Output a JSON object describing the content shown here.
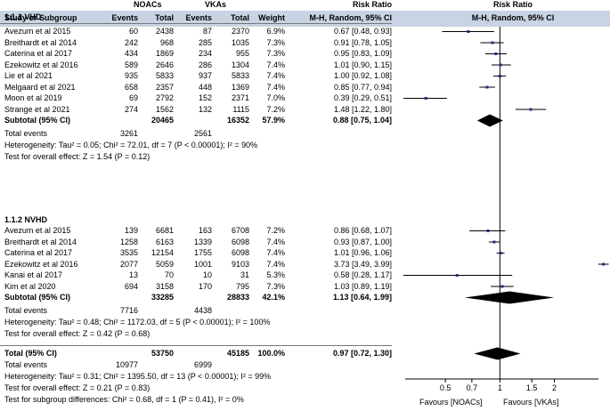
{
  "header": {
    "group_nonac": "NOACs",
    "group_vka": "VKAs",
    "risk_ratio": "Risk Ratio",
    "col_study": "Study or Subgroup",
    "col_events": "Events",
    "col_total": "Total",
    "col_weight": "Weight",
    "col_method": "M-H, Random, 95% CI"
  },
  "sections": [
    {
      "title": "1.1.1 VHD",
      "studies": [
        {
          "name": "Avezum et al 2015",
          "e1": "60",
          "n1": "2438",
          "e2": "87",
          "n2": "2370",
          "w": "6.9%",
          "ci": "0.67 [0.48, 0.93]",
          "rr": 0.67,
          "lo": 0.48,
          "hi": 0.93
        },
        {
          "name": "Breithardt et al 2014",
          "e1": "242",
          "n1": "968",
          "e2": "285",
          "n2": "1035",
          "w": "7.3%",
          "ci": "0.91 [0.78, 1.05]",
          "rr": 0.91,
          "lo": 0.78,
          "hi": 1.05
        },
        {
          "name": "Caterina et al 2017",
          "e1": "434",
          "n1": "1869",
          "e2": "234",
          "n2": "955",
          "w": "7.3%",
          "ci": "0.95 [0.83, 1.09]",
          "rr": 0.95,
          "lo": 0.83,
          "hi": 1.09
        },
        {
          "name": "Ezekowitz et al 2016",
          "e1": "589",
          "n1": "2646",
          "e2": "286",
          "n2": "1304",
          "w": "7.4%",
          "ci": "1.01 [0.90, 1.15]",
          "rr": 1.01,
          "lo": 0.9,
          "hi": 1.15
        },
        {
          "name": "Lie et al 2021",
          "e1": "935",
          "n1": "5833",
          "e2": "937",
          "n2": "5833",
          "w": "7.4%",
          "ci": "1.00 [0.92, 1.08]",
          "rr": 1.0,
          "lo": 0.92,
          "hi": 1.08
        },
        {
          "name": "Melgaard et al 2021",
          "e1": "658",
          "n1": "2357",
          "e2": "448",
          "n2": "1369",
          "w": "7.4%",
          "ci": "0.85 [0.77, 0.94]",
          "rr": 0.85,
          "lo": 0.77,
          "hi": 0.94
        },
        {
          "name": "Moon et al 2019",
          "e1": "69",
          "n1": "2792",
          "e2": "152",
          "n2": "2371",
          "w": "7.0%",
          "ci": "0.39 [0.29, 0.51]",
          "rr": 0.39,
          "lo": 0.29,
          "hi": 0.51
        },
        {
          "name": "Strange et al 2021",
          "e1": "274",
          "n1": "1562",
          "e2": "132",
          "n2": "1115",
          "w": "7.2%",
          "ci": "1.48 [1.22, 1.80]",
          "rr": 1.48,
          "lo": 1.22,
          "hi": 1.8
        }
      ],
      "subtotal": {
        "label": "Subtotal (95% CI)",
        "n1": "20465",
        "n2": "16352",
        "w": "57.9%",
        "ci": "0.88 [0.75, 1.04]",
        "rr": 0.88,
        "lo": 0.75,
        "hi": 1.04
      },
      "total_events": {
        "label": "Total events",
        "e1": "3261",
        "e2": "2561"
      },
      "heterogeneity": "Heterogeneity: Tau² = 0.05; Chi² = 72.01, df = 7 (P < 0.00001); I² = 90%",
      "overall_test": "Test for overall effect: Z = 1.54 (P = 0.12)"
    },
    {
      "title": "1.1.2 NVHD",
      "studies": [
        {
          "name": "Avezum et al 2015",
          "e1": "139",
          "n1": "6681",
          "e2": "163",
          "n2": "6708",
          "w": "7.2%",
          "ci": "0.86 [0.68, 1.07]",
          "rr": 0.86,
          "lo": 0.68,
          "hi": 1.07
        },
        {
          "name": "Breithardt et al 2014",
          "e1": "1258",
          "n1": "6163",
          "e2": "1339",
          "n2": "6098",
          "w": "7.4%",
          "ci": "0.93 [0.87, 1.00]",
          "rr": 0.93,
          "lo": 0.87,
          "hi": 1.0
        },
        {
          "name": "Caterina et al 2017",
          "e1": "3535",
          "n1": "12154",
          "e2": "1755",
          "n2": "6098",
          "w": "7.4%",
          "ci": "1.01 [0.96, 1.06]",
          "rr": 1.01,
          "lo": 0.96,
          "hi": 1.06
        },
        {
          "name": "Ezekowitz et al 2016",
          "e1": "2077",
          "n1": "5059",
          "e2": "1001",
          "n2": "9103",
          "w": "7.4%",
          "ci": "3.73 [3.49, 3.99]",
          "rr": 3.73,
          "lo": 3.49,
          "hi": 3.99
        },
        {
          "name": "Kanai et al 2017",
          "e1": "13",
          "n1": "70",
          "e2": "10",
          "n2": "31",
          "w": "5.3%",
          "ci": "0.58 [0.28, 1.17]",
          "rr": 0.58,
          "lo": 0.28,
          "hi": 1.17
        },
        {
          "name": "Kim et al 2020",
          "e1": "694",
          "n1": "3158",
          "e2": "170",
          "n2": "795",
          "w": "7.3%",
          "ci": "1.03 [0.89, 1.19]",
          "rr": 1.03,
          "lo": 0.89,
          "hi": 1.19
        }
      ],
      "subtotal": {
        "label": "Subtotal (95% CI)",
        "n1": "33285",
        "n2": "28833",
        "w": "42.1%",
        "ci": "1.13 [0.64, 1.99]",
        "rr": 1.13,
        "lo": 0.64,
        "hi": 1.99
      },
      "total_events": {
        "label": "Total events",
        "e1": "7716",
        "e2": "4438"
      },
      "heterogeneity": "Heterogeneity: Tau² = 0.48; Chi² = 1172.03, df = 5 (P < 0.00001); I² = 100%",
      "overall_test": "Test for overall effect: Z = 0.42 (P = 0.68)"
    }
  ],
  "total": {
    "label": "Total (95% CI)",
    "n1": "53750",
    "n2": "45185",
    "w": "100.0%",
    "ci": "0.97 [0.72, 1.30]",
    "rr": 0.97,
    "lo": 0.72,
    "hi": 1.3
  },
  "total_events": {
    "label": "Total events",
    "e1": "10977",
    "e2": "6999"
  },
  "heterogeneity": "Heterogeneity: Tau² = 0.31; Chi² = 1395.50, df = 13 (P < 0.00001); I² = 99%",
  "overall_test": "Test for overall effect: Z = 0.21 (P = 0.83)",
  "subgroup_test": "Test for subgroup differences: Chi² = 0.68, df = 1 (P = 0.41), I² = 0%",
  "chart_data": {
    "type": "forest",
    "title": "Risk Ratio",
    "subtitle": "M-H, Random, 95% CI",
    "x_scale": "log",
    "xlim": [
      0.3,
      3.5
    ],
    "ticks": [
      0.5,
      0.7,
      1,
      1.5,
      2
    ],
    "tick_labels": [
      "0.5",
      "0.7",
      "1",
      "1.5",
      "2"
    ],
    "reference_line": 1,
    "favours_left": "Favours [NOACs]",
    "favours_right": "Favours [VKAs]",
    "square_color": "#1f2d8a"
  }
}
